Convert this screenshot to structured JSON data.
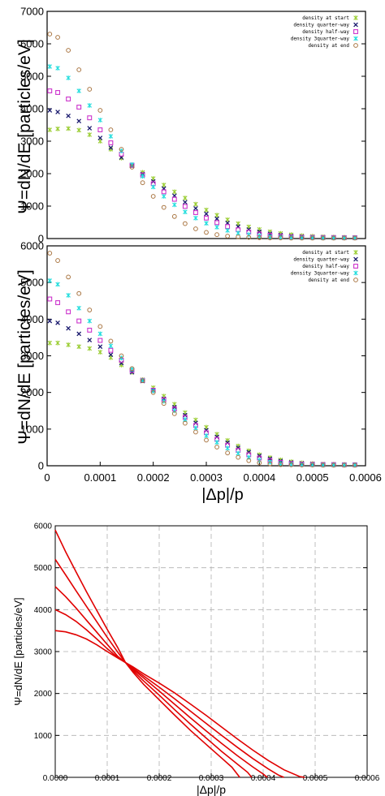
{
  "chart_data": [
    {
      "type": "scatter",
      "ylabel": "Ψ=dN/dE [particles/eV]",
      "ylim": [
        0,
        7000
      ],
      "xlim": [
        0,
        0.0006
      ],
      "y_ticks": [
        "0",
        "1000",
        "2000",
        "3000",
        "4000",
        "5000",
        "6000",
        "7000"
      ],
      "legend_position": "top-right",
      "series": [
        {
          "name": "density at start",
          "color": "#9acd32",
          "marker": "star",
          "x": [
            5e-06,
            2e-05,
            4e-05,
            6e-05,
            8e-05,
            0.0001,
            0.00012,
            0.00014,
            0.00016,
            0.00018,
            0.0002,
            0.00022,
            0.00024,
            0.00026,
            0.00028,
            0.0003,
            0.00032,
            0.00034,
            0.00036,
            0.00038,
            0.0004,
            0.00042,
            0.00044,
            0.00046,
            0.00048,
            0.0005,
            0.00052,
            0.00054,
            0.00056,
            0.00058
          ],
          "y": [
            3350,
            3380,
            3390,
            3340,
            3200,
            3000,
            2750,
            2480,
            2250,
            2040,
            1850,
            1650,
            1440,
            1250,
            1060,
            880,
            720,
            580,
            460,
            360,
            280,
            210,
            160,
            120,
            90,
            70,
            55,
            45,
            40,
            35
          ]
        },
        {
          "name": "density quarter-way",
          "color": "#1a1a6e",
          "marker": "x",
          "x": [
            5e-06,
            2e-05,
            4e-05,
            6e-05,
            8e-05,
            0.0001,
            0.00012,
            0.00014,
            0.00016,
            0.00018,
            0.0002,
            0.00022,
            0.00024,
            0.00026,
            0.00028,
            0.0003,
            0.00032,
            0.00034,
            0.00036,
            0.00038,
            0.0004,
            0.00042,
            0.00044,
            0.00046,
            0.00048,
            0.0005,
            0.00052,
            0.00054,
            0.00056,
            0.00058
          ],
          "y": [
            3950,
            3900,
            3780,
            3620,
            3400,
            3100,
            2800,
            2500,
            2230,
            1990,
            1760,
            1540,
            1320,
            1120,
            930,
            760,
            610,
            480,
            370,
            280,
            210,
            150,
            110,
            80,
            60,
            45,
            40,
            35,
            30,
            30
          ]
        },
        {
          "name": "density half-way",
          "color": "#cc33cc",
          "marker": "square",
          "x": [
            5e-06,
            2e-05,
            4e-05,
            6e-05,
            8e-05,
            0.0001,
            0.00012,
            0.00014,
            0.00016,
            0.00018,
            0.0002,
            0.00022,
            0.00024,
            0.00026,
            0.00028,
            0.0003,
            0.00032,
            0.00034,
            0.00036,
            0.00038,
            0.0004,
            0.00042,
            0.00044,
            0.00046,
            0.00048,
            0.0005,
            0.00052,
            0.00054,
            0.00056,
            0.00058
          ],
          "y": [
            4550,
            4500,
            4300,
            4050,
            3720,
            3350,
            2950,
            2600,
            2260,
            1960,
            1690,
            1440,
            1210,
            990,
            800,
            630,
            490,
            370,
            270,
            200,
            140,
            100,
            70,
            50,
            40,
            35,
            30,
            30,
            25,
            25
          ]
        },
        {
          "name": "density 3quarter-way",
          "color": "#22dddd",
          "marker": "star",
          "x": [
            5e-06,
            2e-05,
            4e-05,
            6e-05,
            8e-05,
            0.0001,
            0.00012,
            0.00014,
            0.00016,
            0.00018,
            0.0002,
            0.00022,
            0.00024,
            0.00026,
            0.00028,
            0.0003,
            0.00032,
            0.00034,
            0.00036,
            0.00038,
            0.0004,
            0.00042,
            0.00044,
            0.00046,
            0.00048,
            0.0005,
            0.00052,
            0.00054,
            0.00056,
            0.00058
          ],
          "y": [
            5300,
            5250,
            4950,
            4550,
            4100,
            3650,
            3150,
            2700,
            2280,
            1920,
            1590,
            1300,
            1040,
            820,
            630,
            470,
            350,
            250,
            170,
            120,
            80,
            55,
            40,
            30,
            25,
            25,
            20,
            20,
            20,
            20
          ]
        },
        {
          "name": "density at end",
          "color": "#aa7744",
          "marker": "circle",
          "x": [
            5e-06,
            2e-05,
            4e-05,
            6e-05,
            8e-05,
            0.0001,
            0.00012,
            0.00014,
            0.00016,
            0.00018,
            0.0002,
            0.00022,
            0.00024,
            0.00026,
            0.00028,
            0.0003,
            0.00032,
            0.00034,
            0.00036,
            0.00038,
            0.0004,
            0.00042,
            0.00044,
            0.00046,
            0.00048,
            0.0005,
            0.00052,
            0.00054,
            0.00056,
            0.00058
          ],
          "y": [
            6300,
            6200,
            5800,
            5200,
            4600,
            3950,
            3350,
            2750,
            2200,
            1720,
            1300,
            960,
            680,
            460,
            300,
            190,
            120,
            75,
            50,
            35,
            25,
            20,
            20,
            15,
            15,
            15,
            15,
            15,
            15,
            15
          ]
        }
      ]
    },
    {
      "type": "scatter",
      "xlabel": "|Δp|/p",
      "ylabel": "Ψ=dN/dE [particles/eV]",
      "ylim": [
        0,
        6000
      ],
      "xlim": [
        0,
        0.0006
      ],
      "x_ticks": [
        "0",
        "0.0001",
        "0.0002",
        "0.0003",
        "0.0004",
        "0.0005",
        "0.0006"
      ],
      "y_ticks": [
        "0",
        "1000",
        "2000",
        "3000",
        "4000",
        "5000",
        "6000"
      ],
      "legend_position": "top-right",
      "series": [
        {
          "name": "density at start",
          "color": "#9acd32",
          "marker": "star",
          "x": [
            5e-06,
            2e-05,
            4e-05,
            6e-05,
            8e-05,
            0.0001,
            0.00012,
            0.00014,
            0.00016,
            0.00018,
            0.0002,
            0.00022,
            0.00024,
            0.00026,
            0.00028,
            0.0003,
            0.00032,
            0.00034,
            0.00036,
            0.00038,
            0.0004,
            0.00042,
            0.00044,
            0.00046,
            0.00048,
            0.0005,
            0.00052,
            0.00054,
            0.00056,
            0.00058
          ],
          "y": [
            3350,
            3350,
            3300,
            3250,
            3200,
            3100,
            2950,
            2750,
            2550,
            2350,
            2130,
            1900,
            1680,
            1450,
            1250,
            1050,
            860,
            690,
            540,
            410,
            300,
            220,
            160,
            110,
            80,
            60,
            45,
            40,
            35,
            30
          ]
        },
        {
          "name": "density quarter-way",
          "color": "#1a1a6e",
          "marker": "x",
          "x": [
            5e-06,
            2e-05,
            4e-05,
            6e-05,
            8e-05,
            0.0001,
            0.00012,
            0.00014,
            0.00016,
            0.00018,
            0.0002,
            0.00022,
            0.00024,
            0.00026,
            0.00028,
            0.0003,
            0.00032,
            0.00034,
            0.00036,
            0.00038,
            0.0004,
            0.00042,
            0.00044,
            0.00046,
            0.00048,
            0.0005,
            0.00052,
            0.00054,
            0.00056,
            0.00058
          ],
          "y": [
            3950,
            3900,
            3750,
            3600,
            3430,
            3250,
            3030,
            2800,
            2550,
            2310,
            2070,
            1830,
            1600,
            1380,
            1170,
            970,
            790,
            630,
            490,
            370,
            270,
            190,
            130,
            90,
            65,
            50,
            40,
            35,
            30,
            30
          ]
        },
        {
          "name": "density half-way",
          "color": "#cc33cc",
          "marker": "square",
          "x": [
            5e-06,
            2e-05,
            4e-05,
            6e-05,
            8e-05,
            0.0001,
            0.00012,
            0.00014,
            0.00016,
            0.00018,
            0.0002,
            0.00022,
            0.00024,
            0.00026,
            0.00028,
            0.0003,
            0.00032,
            0.00034,
            0.00036,
            0.00038,
            0.0004,
            0.00042,
            0.00044,
            0.00046,
            0.00048,
            0.0005,
            0.00052,
            0.00054,
            0.00056,
            0.00058
          ],
          "y": [
            4550,
            4450,
            4200,
            3950,
            3700,
            3420,
            3150,
            2880,
            2600,
            2330,
            2060,
            1800,
            1550,
            1320,
            1100,
            900,
            720,
            560,
            420,
            300,
            210,
            140,
            90,
            60,
            45,
            35,
            30,
            30,
            25,
            25
          ]
        },
        {
          "name": "density 3quarter-way",
          "color": "#22dddd",
          "marker": "star",
          "x": [
            5e-06,
            2e-05,
            4e-05,
            6e-05,
            8e-05,
            0.0001,
            0.00012,
            0.00014,
            0.00016,
            0.00018,
            0.0002,
            0.00022,
            0.00024,
            0.00026,
            0.00028,
            0.0003,
            0.00032,
            0.00034,
            0.00036,
            0.00038,
            0.0004,
            0.00042,
            0.00044,
            0.00046,
            0.00048,
            0.0005,
            0.00052,
            0.00054,
            0.00056,
            0.00058
          ],
          "y": [
            5050,
            4950,
            4650,
            4300,
            3950,
            3600,
            3270,
            2940,
            2630,
            2330,
            2040,
            1760,
            1500,
            1260,
            1030,
            820,
            640,
            480,
            340,
            230,
            150,
            95,
            60,
            40,
            30,
            25,
            20,
            20,
            20,
            20
          ]
        },
        {
          "name": "density at end",
          "color": "#aa7744",
          "marker": "circle",
          "x": [
            5e-06,
            2e-05,
            4e-05,
            6e-05,
            8e-05,
            0.0001,
            0.00012,
            0.00014,
            0.00016,
            0.00018,
            0.0002,
            0.00022,
            0.00024,
            0.00026,
            0.00028,
            0.0003,
            0.00032,
            0.00034,
            0.00036,
            0.00038,
            0.0004,
            0.00042,
            0.00044,
            0.00046,
            0.00048,
            0.0005,
            0.00052,
            0.00054,
            0.00056,
            0.00058
          ],
          "y": [
            5800,
            5600,
            5150,
            4700,
            4250,
            3800,
            3400,
            3000,
            2650,
            2320,
            2000,
            1700,
            1420,
            1160,
            920,
            700,
            510,
            350,
            230,
            140,
            80,
            50,
            30,
            25,
            20,
            20,
            15,
            15,
            15,
            15
          ]
        }
      ]
    },
    {
      "type": "line",
      "xlabel": "|Δp|/p",
      "ylabel": "Ψ=dN/dE [particles/eV]",
      "ylim": [
        0,
        6000
      ],
      "xlim": [
        0,
        0.0006
      ],
      "x_ticks": [
        "0.0000",
        "0.0001",
        "0.0002",
        "0.0003",
        "0.0004",
        "0.0005",
        "0.0006"
      ],
      "y_ticks": [
        "1000",
        "2000",
        "3000",
        "4000",
        "5000",
        "6000"
      ],
      "grid": true,
      "color": "#e00000",
      "series": [
        {
          "x": [
            0,
            2e-05,
            4e-05,
            6e-05,
            8e-05,
            0.0001,
            0.00012,
            0.000135,
            0.00015,
            0.00017,
            0.0002,
            0.00023,
            0.00026,
            0.00029,
            0.00032,
            0.00035,
            0.00038,
            0.00041,
            0.00044,
            0.00047,
            0.00048
          ],
          "y": [
            3500,
            3470,
            3400,
            3300,
            3160,
            3000,
            2850,
            2740,
            2630,
            2470,
            2250,
            2010,
            1750,
            1480,
            1200,
            920,
            650,
            400,
            180,
            20,
            0
          ]
        },
        {
          "x": [
            0,
            2e-05,
            4e-05,
            6e-05,
            8e-05,
            0.0001,
            0.00012,
            0.000135,
            0.00015,
            0.00017,
            0.0002,
            0.00023,
            0.00026,
            0.00029,
            0.00032,
            0.00035,
            0.00038,
            0.00041,
            0.00043,
            0.00044
          ],
          "y": [
            4000,
            3880,
            3720,
            3520,
            3300,
            3070,
            2860,
            2740,
            2600,
            2420,
            2150,
            1870,
            1580,
            1290,
            1000,
            720,
            450,
            200,
            50,
            0
          ]
        },
        {
          "x": [
            0,
            2e-05,
            4e-05,
            6e-05,
            8e-05,
            0.0001,
            0.00012,
            0.000135,
            0.00015,
            0.00017,
            0.0002,
            0.00023,
            0.00026,
            0.00029,
            0.00032,
            0.00035,
            0.00038,
            0.0004,
            0.000408
          ],
          "y": [
            4550,
            4310,
            4040,
            3750,
            3460,
            3170,
            2890,
            2740,
            2570,
            2370,
            2060,
            1740,
            1420,
            1110,
            810,
            520,
            250,
            80,
            0
          ]
        },
        {
          "x": [
            0,
            2e-05,
            4e-05,
            6e-05,
            8e-05,
            0.0001,
            0.00012,
            0.000135,
            0.00015,
            0.00017,
            0.0002,
            0.00023,
            0.00026,
            0.00029,
            0.00032,
            0.00035,
            0.00037,
            0.000378
          ],
          "y": [
            5200,
            4830,
            4450,
            4080,
            3710,
            3340,
            2990,
            2740,
            2540,
            2300,
            1960,
            1610,
            1270,
            940,
            620,
            320,
            120,
            0
          ]
        },
        {
          "x": [
            0,
            2e-05,
            4e-05,
            6e-05,
            8e-05,
            0.0001,
            0.00012,
            0.000135,
            0.00015,
            0.00017,
            0.0002,
            0.00023,
            0.00026,
            0.00029,
            0.00032,
            0.00034,
            0.000355
          ],
          "y": [
            5900,
            5380,
            4900,
            4430,
            3980,
            3530,
            3100,
            2740,
            2500,
            2220,
            1850,
            1480,
            1120,
            790,
            460,
            240,
            0
          ]
        }
      ]
    }
  ]
}
